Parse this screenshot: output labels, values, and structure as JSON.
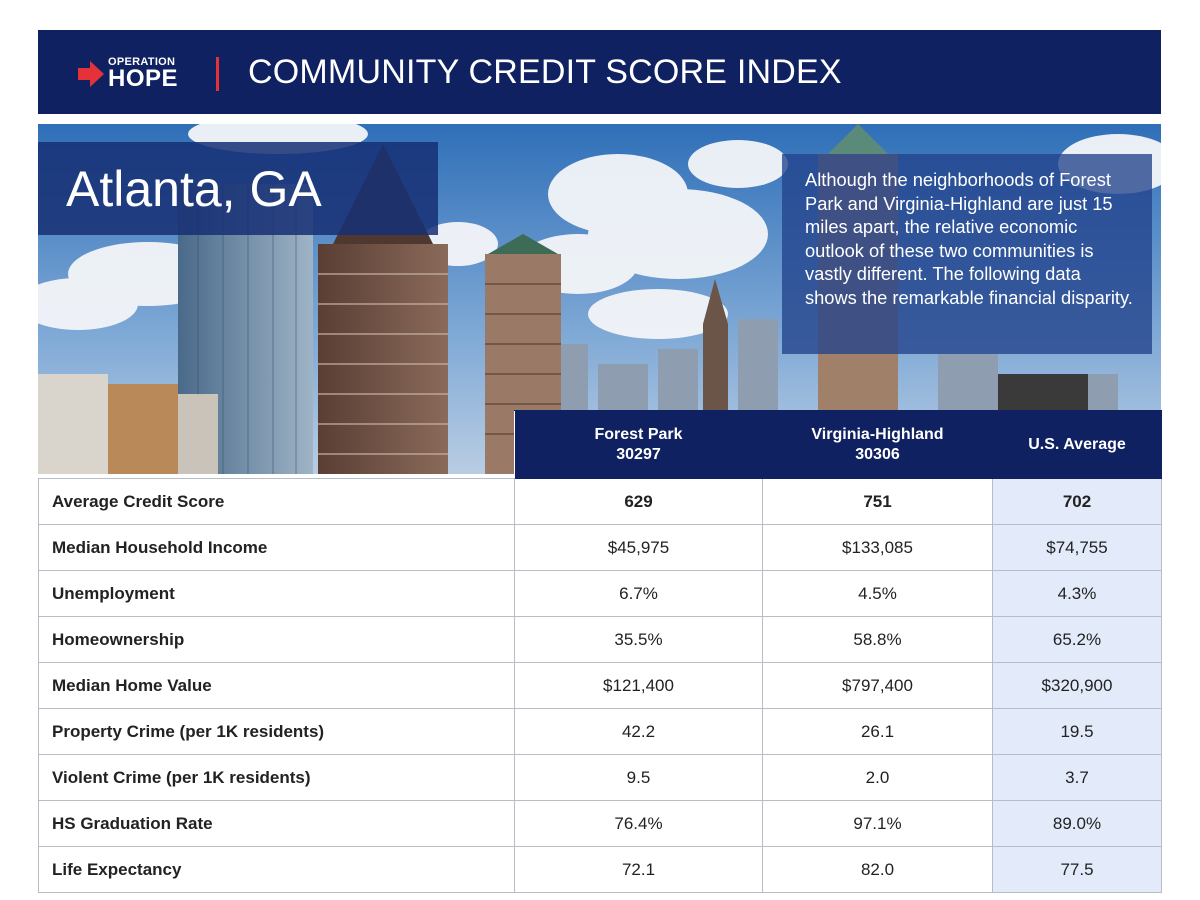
{
  "header": {
    "logo_line1": "OPERATION",
    "logo_line2": "HOPE",
    "title": "COMMUNITY CREDIT SCORE INDEX"
  },
  "city": "Atlanta, GA",
  "blurb": "Although the neighborhoods of Forest Park and Virginia-Highland are just 15 miles apart, the relative economic outlook of these two communities is vastly different. The following data shows the remarkable financial disparity.",
  "colors": {
    "navy": "#0f2160",
    "accent_red": "#e53238",
    "us_column": "#e3ebfa"
  },
  "table": {
    "columns": [
      {
        "line1": "Forest Park",
        "line2": "30297"
      },
      {
        "line1": "Virginia-Highland",
        "line2": "30306"
      },
      {
        "line1": "U.S. Average",
        "line2": ""
      }
    ],
    "rows": [
      {
        "label": "Average Credit Score",
        "values": [
          "629",
          "751",
          "702"
        ]
      },
      {
        "label": "Median Household Income",
        "values": [
          "$45,975",
          "$133,085",
          "$74,755"
        ]
      },
      {
        "label": "Unemployment",
        "values": [
          "6.7%",
          "4.5%",
          "4.3%"
        ]
      },
      {
        "label": "Homeownership",
        "values": [
          "35.5%",
          "58.8%",
          "65.2%"
        ]
      },
      {
        "label": "Median Home Value",
        "values": [
          "$121,400",
          "$797,400",
          "$320,900"
        ]
      },
      {
        "label": "Property Crime (per 1K residents)",
        "values": [
          "42.2",
          "26.1",
          "19.5"
        ]
      },
      {
        "label": "Violent Crime (per 1K residents)",
        "values": [
          "9.5",
          "2.0",
          "3.7"
        ]
      },
      {
        "label": "HS Graduation Rate",
        "values": [
          "76.4%",
          "97.1%",
          "89.0%"
        ]
      },
      {
        "label": "Life Expectancy",
        "values": [
          "72.1",
          "82.0",
          "77.5"
        ]
      }
    ]
  }
}
